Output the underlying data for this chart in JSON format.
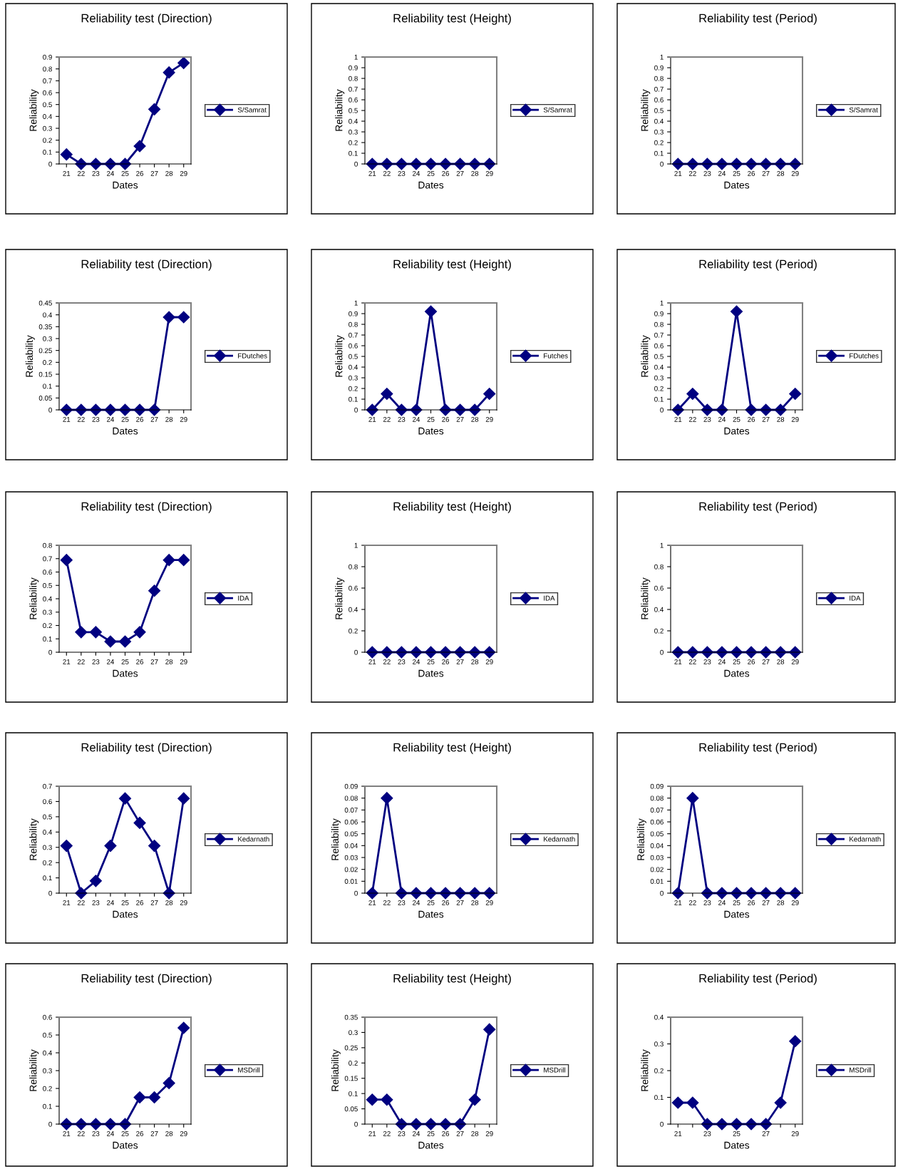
{
  "chart_data": [
    {
      "type": "line",
      "title": "Reliability test (Direction)",
      "xlabel": "Dates",
      "ylabel": "Reliability",
      "categories": [
        "21",
        "22",
        "23",
        "24",
        "25",
        "26",
        "27",
        "28",
        "29"
      ],
      "series": [
        {
          "name": "S/Samrat",
          "color": "#000080",
          "values": [
            0.08,
            0,
            0,
            0,
            0,
            0.15,
            0.46,
            0.77,
            0.85
          ]
        }
      ],
      "ylim": [
        0,
        0.9
      ],
      "yticks": [
        0,
        0.1,
        0.2,
        0.3,
        0.4,
        0.5,
        0.6,
        0.7,
        0.8,
        0.9
      ],
      "grid": false,
      "legend": "right",
      "marker": "diamond",
      "line_style": "solid"
    },
    {
      "type": "line",
      "title": "Reliability test (Height)",
      "xlabel": "Dates",
      "ylabel": "Reliability",
      "categories": [
        "21",
        "22",
        "23",
        "24",
        "25",
        "26",
        "27",
        "28",
        "29"
      ],
      "series": [
        {
          "name": "S/Samrat",
          "color": "#000080",
          "values": [
            0,
            0,
            0,
            0,
            0,
            0,
            0,
            0,
            0
          ]
        }
      ],
      "ylim": [
        0,
        1
      ],
      "yticks": [
        0,
        0.1,
        0.2,
        0.3,
        0.4,
        0.5,
        0.6,
        0.7,
        0.8,
        0.9,
        1
      ],
      "grid": false,
      "legend": "right",
      "marker": "diamond",
      "line_style": "solid"
    },
    {
      "type": "line",
      "title": "Reliability test (Period)",
      "xlabel": "Dates",
      "ylabel": "Reliability",
      "categories": [
        "21",
        "22",
        "23",
        "24",
        "25",
        "26",
        "27",
        "28",
        "29"
      ],
      "series": [
        {
          "name": "S/Samrat",
          "color": "#000080",
          "values": [
            0,
            0,
            0,
            0,
            0,
            0,
            0,
            0,
            0
          ]
        }
      ],
      "ylim": [
        0,
        1
      ],
      "yticks": [
        0,
        0.1,
        0.2,
        0.3,
        0.4,
        0.5,
        0.6,
        0.7,
        0.8,
        0.9,
        1
      ],
      "grid": false,
      "legend": "right",
      "marker": "diamond",
      "line_style": "solid"
    },
    {
      "type": "line",
      "title": "Reliability test (Direction)",
      "xlabel": "Dates",
      "ylabel": "Reliability",
      "categories": [
        "21",
        "22",
        "23",
        "24",
        "25",
        "26",
        "27",
        "28",
        "29"
      ],
      "series": [
        {
          "name": "FDutches",
          "color": "#000080",
          "values": [
            0,
            0,
            0,
            0,
            0,
            0,
            0,
            0.39,
            0.39
          ]
        }
      ],
      "ylim": [
        0,
        0.45
      ],
      "yticks": [
        0,
        0.05,
        0.1,
        0.15,
        0.2,
        0.25,
        0.3,
        0.35,
        0.4,
        0.45
      ],
      "grid": false,
      "legend": "right",
      "marker": "diamond",
      "line_style": "solid"
    },
    {
      "type": "line",
      "title": "Reliability test (Height)",
      "xlabel": "Dates",
      "ylabel": "Reliability",
      "categories": [
        "21",
        "22",
        "23",
        "24",
        "25",
        "26",
        "27",
        "28",
        "29"
      ],
      "series": [
        {
          "name": "Futches",
          "color": "#000080",
          "values": [
            0,
            0.15,
            0,
            0,
            0.92,
            0,
            0,
            0,
            0.15
          ]
        }
      ],
      "ylim": [
        0,
        1
      ],
      "yticks": [
        0,
        0.1,
        0.2,
        0.3,
        0.4,
        0.5,
        0.6,
        0.7,
        0.8,
        0.9,
        1
      ],
      "grid": false,
      "legend": "right",
      "marker": "diamond",
      "line_style": "solid"
    },
    {
      "type": "line",
      "title": "Reliability test (Period)",
      "xlabel": "Dates",
      "ylabel": "Reliability",
      "categories": [
        "21",
        "22",
        "23",
        "24",
        "25",
        "26",
        "27",
        "28",
        "29"
      ],
      "series": [
        {
          "name": "FDutches",
          "color": "#000080",
          "values": [
            0,
            0.15,
            0,
            0,
            0.92,
            0,
            0,
            0,
            0.15
          ]
        }
      ],
      "ylim": [
        0,
        1
      ],
      "yticks": [
        0,
        0.1,
        0.2,
        0.3,
        0.4,
        0.5,
        0.6,
        0.7,
        0.8,
        0.9,
        1
      ],
      "grid": false,
      "legend": "right",
      "marker": "diamond",
      "line_style": "solid"
    },
    {
      "type": "line",
      "title": "Reliability test (Direction)",
      "xlabel": "Dates",
      "ylabel": "Reliability",
      "categories": [
        "21",
        "22",
        "23",
        "24",
        "25",
        "26",
        "27",
        "28",
        "29"
      ],
      "series": [
        {
          "name": "IDA",
          "color": "#000080",
          "values": [
            0.69,
            0.15,
            0.15,
            0.08,
            0.08,
            0.15,
            0.46,
            0.69,
            0.69
          ]
        }
      ],
      "ylim": [
        0,
        0.8
      ],
      "yticks": [
        0,
        0.1,
        0.2,
        0.3,
        0.4,
        0.5,
        0.6,
        0.7,
        0.8
      ],
      "grid": false,
      "legend": "right",
      "marker": "diamond",
      "line_style": "solid"
    },
    {
      "type": "line",
      "title": "Reliability test (Height)",
      "xlabel": "Dates",
      "ylabel": "Reliability",
      "categories": [
        "21",
        "22",
        "23",
        "24",
        "25",
        "26",
        "27",
        "28",
        "29"
      ],
      "series": [
        {
          "name": "IDA",
          "color": "#000080",
          "values": [
            0,
            0,
            0,
            0,
            0,
            0,
            0,
            0,
            0
          ]
        }
      ],
      "ylim": [
        0,
        1
      ],
      "yticks": [
        0,
        0.2,
        0.4,
        0.6,
        0.8,
        1
      ],
      "grid": false,
      "legend": "right",
      "marker": "diamond",
      "line_style": "solid"
    },
    {
      "type": "line",
      "title": "Reliability test (Period)",
      "xlabel": "Dates",
      "ylabel": "Reliability",
      "categories": [
        "21",
        "22",
        "23",
        "24",
        "25",
        "26",
        "27",
        "28",
        "29"
      ],
      "series": [
        {
          "name": "IDA",
          "color": "#000080",
          "values": [
            0,
            0,
            0,
            0,
            0,
            0,
            0,
            0,
            0
          ]
        }
      ],
      "ylim": [
        0,
        1
      ],
      "yticks": [
        0,
        0.2,
        0.4,
        0.6,
        0.8,
        1
      ],
      "grid": false,
      "legend": "right",
      "marker": "diamond",
      "line_style": "solid"
    },
    {
      "type": "line",
      "title": "Reliability test (Direction)",
      "xlabel": "Dates",
      "ylabel": "Reliability",
      "categories": [
        "21",
        "22",
        "23",
        "24",
        "25",
        "26",
        "27",
        "28",
        "29"
      ],
      "series": [
        {
          "name": "Kedarnath",
          "color": "#000080",
          "values": [
            0.31,
            0,
            0.08,
            0.31,
            0.62,
            0.46,
            0.31,
            0,
            0.62
          ]
        }
      ],
      "ylim": [
        0,
        0.7
      ],
      "yticks": [
        0,
        0.1,
        0.2,
        0.3,
        0.4,
        0.5,
        0.6,
        0.7
      ],
      "grid": false,
      "legend": "right",
      "marker": "diamond",
      "line_style": "solid"
    },
    {
      "type": "line",
      "title": "Reliability test (Height)",
      "xlabel": "Dates",
      "ylabel": "Reliability",
      "categories": [
        "21",
        "22",
        "23",
        "24",
        "25",
        "26",
        "27",
        "28",
        "29"
      ],
      "series": [
        {
          "name": "Kedarnath",
          "color": "#000080",
          "values": [
            0,
            0.08,
            0,
            0,
            0,
            0,
            0,
            0,
            0
          ]
        }
      ],
      "ylim": [
        0,
        0.09
      ],
      "yticks": [
        0,
        0.01,
        0.02,
        0.03,
        0.04,
        0.05,
        0.06,
        0.07,
        0.08,
        0.09
      ],
      "grid": false,
      "legend": "right",
      "marker": "diamond",
      "line_style": "solid"
    },
    {
      "type": "line",
      "title": "Reliability test (Period)",
      "xlabel": "Dates",
      "ylabel": "Reliability",
      "categories": [
        "21",
        "22",
        "23",
        "24",
        "25",
        "26",
        "27",
        "28",
        "29"
      ],
      "series": [
        {
          "name": "Kedarnath",
          "color": "#000080",
          "values": [
            0,
            0.08,
            0,
            0,
            0,
            0,
            0,
            0,
            0
          ]
        }
      ],
      "ylim": [
        0,
        0.09
      ],
      "yticks": [
        0,
        0.01,
        0.02,
        0.03,
        0.04,
        0.05,
        0.06,
        0.07,
        0.08,
        0.09
      ],
      "grid": false,
      "legend": "right",
      "marker": "diamond",
      "line_style": "solid"
    },
    {
      "type": "line",
      "title": "Reliability test (Direction)",
      "xlabel": "Dates",
      "ylabel": "Reliability",
      "categories": [
        "21",
        "22",
        "23",
        "24",
        "25",
        "26",
        "27",
        "28",
        "29"
      ],
      "series": [
        {
          "name": "MSDrill",
          "color": "#000080",
          "values": [
            0,
            0,
            0,
            0,
            0,
            0.15,
            0.15,
            0.23,
            0.54
          ]
        }
      ],
      "ylim": [
        0,
        0.6
      ],
      "yticks": [
        0,
        0.1,
        0.2,
        0.3,
        0.4,
        0.5,
        0.6
      ],
      "grid": false,
      "legend": "right",
      "marker": "diamond",
      "line_style": "solid"
    },
    {
      "type": "line",
      "title": "Reliability test (Height)",
      "xlabel": "Dates",
      "ylabel": "Reliability",
      "categories": [
        "21",
        "22",
        "23",
        "24",
        "25",
        "26",
        "27",
        "28",
        "29"
      ],
      "series": [
        {
          "name": "MSDrill",
          "color": "#000080",
          "values": [
            0.08,
            0.08,
            0,
            0,
            0,
            0,
            0,
            0.08,
            0.31
          ]
        }
      ],
      "ylim": [
        0,
        0.35
      ],
      "yticks": [
        0,
        0.05,
        0.1,
        0.15,
        0.2,
        0.25,
        0.3,
        0.35
      ],
      "grid": false,
      "legend": "right",
      "marker": "diamond",
      "line_style": "solid"
    },
    {
      "type": "line",
      "title": "Reliability test (Period)",
      "xlabel": "Dates",
      "ylabel": "Reliability",
      "categories": [
        "21",
        null,
        "23",
        null,
        "25",
        null,
        "27",
        null,
        "29"
      ],
      "series": [
        {
          "name": "MSDrill",
          "color": "#000080",
          "values": [
            0.08,
            0.08,
            0,
            0,
            0,
            0,
            0,
            0.08,
            0.31
          ]
        }
      ],
      "ylim": [
        0,
        0.4
      ],
      "yticks": [
        0,
        0.1,
        0.2,
        0.3,
        0.4
      ],
      "grid": false,
      "legend": "right",
      "marker": "diamond",
      "line_style": "solid"
    }
  ]
}
